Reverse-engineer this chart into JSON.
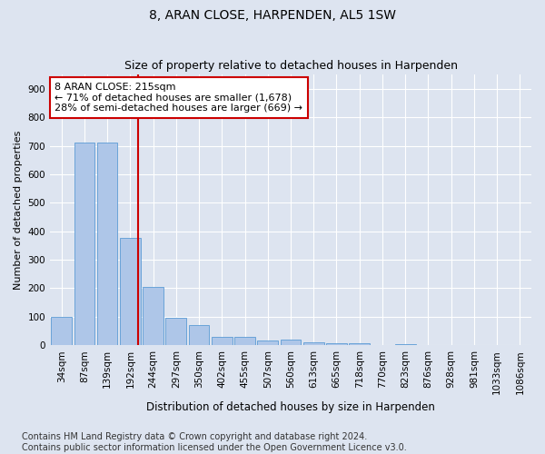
{
  "title": "8, ARAN CLOSE, HARPENDEN, AL5 1SW",
  "subtitle": "Size of property relative to detached houses in Harpenden",
  "xlabel": "Distribution of detached houses by size in Harpenden",
  "ylabel": "Number of detached properties",
  "categories": [
    "34sqm",
    "87sqm",
    "139sqm",
    "192sqm",
    "244sqm",
    "297sqm",
    "350sqm",
    "402sqm",
    "455sqm",
    "507sqm",
    "560sqm",
    "613sqm",
    "665sqm",
    "718sqm",
    "770sqm",
    "823sqm",
    "876sqm",
    "928sqm",
    "981sqm",
    "1033sqm",
    "1086sqm"
  ],
  "values": [
    100,
    710,
    710,
    375,
    205,
    95,
    70,
    28,
    30,
    17,
    20,
    10,
    8,
    8,
    0,
    5,
    0,
    0,
    0,
    0,
    0
  ],
  "bar_color": "#aec6e8",
  "bar_edge_color": "#5b9bd5",
  "annotation_line1": "8 ARAN CLOSE: 215sqm",
  "annotation_line2": "← 71% of detached houses are smaller (1,678)",
  "annotation_line3": "28% of semi-detached houses are larger (669) →",
  "annotation_box_color": "#ffffff",
  "annotation_box_edge_color": "#cc0000",
  "vline_color": "#cc0000",
  "vline_x_index": 3.35,
  "ylim": [
    0,
    950
  ],
  "yticks": [
    0,
    100,
    200,
    300,
    400,
    500,
    600,
    700,
    800,
    900
  ],
  "footnote1": "Contains HM Land Registry data © Crown copyright and database right 2024.",
  "footnote2": "Contains public sector information licensed under the Open Government Licence v3.0.",
  "background_color": "#dde4f0",
  "plot_bg_color": "#dde4f0",
  "title_fontsize": 10,
  "subtitle_fontsize": 9,
  "xlabel_fontsize": 8.5,
  "ylabel_fontsize": 8,
  "tick_fontsize": 7.5,
  "annotation_fontsize": 8,
  "footnote_fontsize": 7
}
